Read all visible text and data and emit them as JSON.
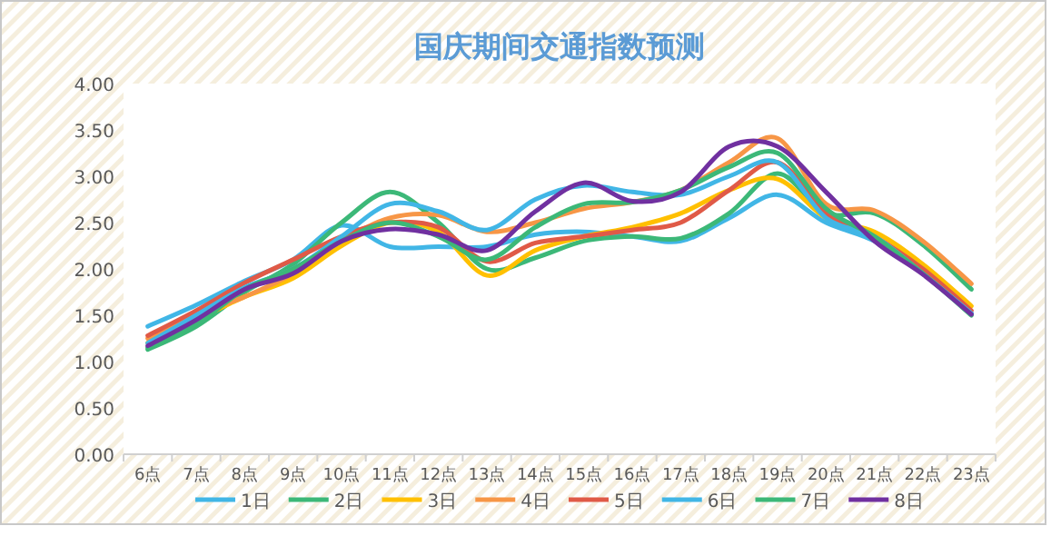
{
  "chart_data": {
    "type": "line",
    "title": "国庆期间交通指数预测",
    "categories": [
      "6点",
      "7点",
      "8点",
      "9点",
      "10点",
      "11点",
      "12点",
      "13点",
      "14点",
      "15点",
      "16点",
      "17点",
      "18点",
      "19点",
      "20点",
      "21点",
      "22点",
      "23点"
    ],
    "ylim": [
      0,
      4
    ],
    "yticks": [
      {
        "value": 0,
        "label": "0.00"
      },
      {
        "value": 0.5,
        "label": "0.50"
      },
      {
        "value": 1,
        "label": "1.00"
      },
      {
        "value": 1.5,
        "label": "1.50"
      },
      {
        "value": 2,
        "label": "2.00"
      },
      {
        "value": 2.5,
        "label": "2.50"
      },
      {
        "value": 3,
        "label": "3.00"
      },
      {
        "value": 3.5,
        "label": "3.50"
      },
      {
        "value": 4,
        "label": "4.00"
      }
    ],
    "grid": false,
    "legend": "bottom",
    "marker": "none",
    "line_style": "solid",
    "series": [
      {
        "name": "1日",
        "color": "#41b6e6",
        "values": [
          1.38,
          1.61,
          1.87,
          2.1,
          2.47,
          2.24,
          2.24,
          2.24,
          2.37,
          2.4,
          2.35,
          2.3,
          2.55,
          2.8,
          2.5,
          2.3,
          1.95,
          1.52
        ]
      },
      {
        "name": "2日",
        "color": "#3cb878",
        "values": [
          1.13,
          1.38,
          1.75,
          2.05,
          2.5,
          2.83,
          2.5,
          2.0,
          2.12,
          2.3,
          2.35,
          2.33,
          2.6,
          3.03,
          2.6,
          2.6,
          2.26,
          1.78
        ]
      },
      {
        "name": "3日",
        "color": "#ffc000",
        "values": [
          1.2,
          1.45,
          1.7,
          1.9,
          2.25,
          2.5,
          2.4,
          1.93,
          2.2,
          2.35,
          2.45,
          2.6,
          2.85,
          2.97,
          2.55,
          2.4,
          2.05,
          1.6
        ]
      },
      {
        "name": "4日",
        "color": "#f79646",
        "values": [
          1.25,
          1.5,
          1.7,
          1.95,
          2.3,
          2.55,
          2.58,
          2.4,
          2.5,
          2.65,
          2.72,
          2.85,
          3.15,
          3.41,
          2.7,
          2.63,
          2.3,
          1.84
        ]
      },
      {
        "name": "5日",
        "color": "#e05a47",
        "values": [
          1.28,
          1.55,
          1.85,
          2.1,
          2.35,
          2.5,
          2.45,
          2.08,
          2.28,
          2.35,
          2.42,
          2.5,
          2.85,
          3.15,
          2.6,
          2.35,
          2.0,
          1.55
        ]
      },
      {
        "name": "6日",
        "color": "#41b6e6",
        "values": [
          1.2,
          1.5,
          1.8,
          2.0,
          2.35,
          2.7,
          2.62,
          2.42,
          2.75,
          2.9,
          2.83,
          2.8,
          3.0,
          3.15,
          2.55,
          2.35,
          1.95,
          1.52
        ]
      },
      {
        "name": "7日",
        "color": "#3cb878",
        "values": [
          1.15,
          1.4,
          1.78,
          2.0,
          2.3,
          2.5,
          2.35,
          2.1,
          2.45,
          2.7,
          2.72,
          2.85,
          3.1,
          3.25,
          2.65,
          2.35,
          1.95,
          1.5
        ]
      },
      {
        "name": "8日",
        "color": "#7030a0",
        "values": [
          1.17,
          1.45,
          1.78,
          1.95,
          2.3,
          2.43,
          2.37,
          2.2,
          2.62,
          2.93,
          2.73,
          2.83,
          3.32,
          3.32,
          2.83,
          2.3,
          1.94,
          1.51
        ]
      }
    ]
  }
}
